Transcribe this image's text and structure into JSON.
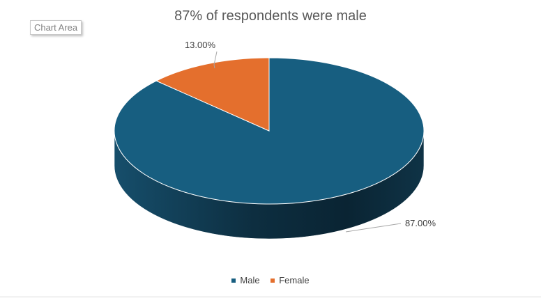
{
  "chart_data": {
    "type": "pie",
    "title": "87% of respondents were male",
    "categories": [
      "Male",
      "Female"
    ],
    "values": [
      87,
      13
    ],
    "data_labels": [
      "87.00%",
      "13.00%"
    ],
    "colors": [
      "#175e80",
      "#e46f2d"
    ],
    "legend_position": "bottom",
    "style": "3d"
  },
  "tooltip": {
    "text": "Chart Area"
  },
  "legend": {
    "items": [
      {
        "label": "Male",
        "color": "#175e80"
      },
      {
        "label": "Female",
        "color": "#e46f2d"
      }
    ]
  }
}
